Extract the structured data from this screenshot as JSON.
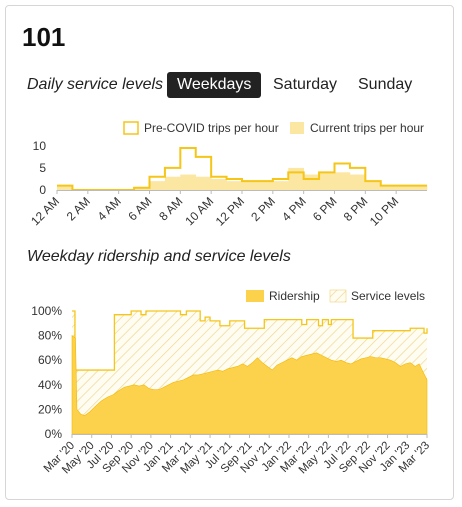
{
  "route": {
    "title": "101"
  },
  "service": {
    "label": "Daily service levels",
    "tabs": [
      {
        "label": "Weekdays",
        "active": true
      },
      {
        "label": "Saturday",
        "active": false
      },
      {
        "label": "Sunday",
        "active": false
      }
    ]
  },
  "ridership_section": {
    "label": "Weekday ridership and service levels"
  },
  "colors": {
    "accent": "#f5c518",
    "fill_light": "#fbe6a2",
    "fill_ridership": "#fcd24c",
    "dark_tab": "#222222"
  },
  "chart_data": [
    {
      "type": "step-area",
      "legend": [
        "Pre-COVID trips per hour",
        "Current trips per hour"
      ],
      "legend_position": "top-right",
      "x_tick_labels": [
        "12 AM",
        "2 AM",
        "4 AM",
        "6 AM",
        "8 AM",
        "10 AM",
        "12 PM",
        "2 PM",
        "4 PM",
        "6 PM",
        "8 PM",
        "10 PM"
      ],
      "x_tick_hours": [
        0,
        2,
        4,
        6,
        8,
        10,
        12,
        14,
        16,
        18,
        20,
        22
      ],
      "y_ticks": [
        0,
        5,
        10
      ],
      "ylim": [
        0,
        12
      ],
      "xlim": [
        0,
        24
      ],
      "hours": [
        0,
        1,
        2,
        3,
        4,
        5,
        6,
        7,
        8,
        9,
        10,
        11,
        12,
        13,
        14,
        15,
        16,
        17,
        18,
        19,
        20,
        21,
        22,
        23
      ],
      "series": [
        {
          "name": "Pre-COVID trips per hour",
          "values": [
            1,
            0,
            0,
            0,
            0,
            0.5,
            3,
            5,
            9.5,
            7.5,
            3,
            2.5,
            2,
            2,
            2.5,
            4,
            2.5,
            4,
            6,
            5,
            2,
            1,
            1,
            1
          ]
        },
        {
          "name": "Current trips per hour",
          "values": [
            1,
            0,
            0,
            0,
            0,
            0.5,
            2,
            3,
            3.5,
            3,
            2.5,
            2,
            2,
            2,
            2,
            5,
            3.5,
            4,
            4,
            3.5,
            2,
            1,
            1,
            1
          ]
        }
      ]
    },
    {
      "type": "area",
      "legend": [
        "Ridership",
        "Service levels"
      ],
      "legend_position": "top-right",
      "x_tick_labels": [
        "Mar '20",
        "May '20",
        "Jul '20",
        "Sep '20",
        "Nov '20",
        "Jan '21",
        "Mar '21",
        "May '21",
        "Jul '21",
        "Sep '21",
        "Nov '21",
        "Jan '22",
        "Mar '22",
        "May '22",
        "Jul '22",
        "Sep '22",
        "Nov '22",
        "Jan '23",
        "Mar '23"
      ],
      "y_tick_labels": [
        "0%",
        "20%",
        "40%",
        "60%",
        "80%",
        "100%"
      ],
      "y_ticks": [
        0,
        20,
        40,
        60,
        80,
        100
      ],
      "ylim": [
        0,
        100
      ],
      "xlim_months": [
        0,
        36
      ],
      "series": [
        {
          "name": "Service levels",
          "points": [
            [
              0,
              100
            ],
            [
              0.3,
              100
            ],
            [
              0.3,
              52
            ],
            [
              4.3,
              52
            ],
            [
              4.3,
              97
            ],
            [
              6,
              97
            ],
            [
              6,
              100
            ],
            [
              7,
              100
            ],
            [
              7,
              97
            ],
            [
              7.5,
              97
            ],
            [
              7.5,
              100
            ],
            [
              11,
              100
            ],
            [
              11,
              97
            ],
            [
              11.6,
              97
            ],
            [
              11.6,
              100
            ],
            [
              13,
              100
            ],
            [
              13,
              92
            ],
            [
              13.5,
              92
            ],
            [
              13.5,
              95
            ],
            [
              14,
              95
            ],
            [
              14,
              92
            ],
            [
              15,
              92
            ],
            [
              15,
              88
            ],
            [
              16,
              88
            ],
            [
              16,
              92
            ],
            [
              17.5,
              92
            ],
            [
              17.5,
              86
            ],
            [
              19.5,
              86
            ],
            [
              19.5,
              93
            ],
            [
              23.3,
              93
            ],
            [
              23.3,
              89
            ],
            [
              23.8,
              89
            ],
            [
              23.8,
              93
            ],
            [
              25,
              93
            ],
            [
              25,
              88
            ],
            [
              25.4,
              88
            ],
            [
              25.4,
              93
            ],
            [
              26,
              93
            ],
            [
              26,
              89
            ],
            [
              26.3,
              89
            ],
            [
              26.3,
              93
            ],
            [
              28.5,
              93
            ],
            [
              28.5,
              78
            ],
            [
              30.5,
              78
            ],
            [
              30.5,
              84
            ],
            [
              34.3,
              84
            ],
            [
              34.3,
              86
            ],
            [
              35.7,
              86
            ],
            [
              35.7,
              82
            ],
            [
              36,
              82
            ],
            [
              36,
              86
            ]
          ]
        },
        {
          "name": "Ridership",
          "points": [
            [
              0,
              80
            ],
            [
              0.35,
              78
            ],
            [
              0.5,
              20
            ],
            [
              0.9,
              16
            ],
            [
              1.3,
              15
            ],
            [
              1.8,
              18
            ],
            [
              2.3,
              22
            ],
            [
              3,
              27
            ],
            [
              3.6,
              30
            ],
            [
              4.2,
              32
            ],
            [
              4.7,
              35
            ],
            [
              5.3,
              38
            ],
            [
              5.8,
              39
            ],
            [
              6.3,
              40
            ],
            [
              6.8,
              39
            ],
            [
              7.3,
              40
            ],
            [
              7.8,
              37
            ],
            [
              8.3,
              36
            ],
            [
              8.8,
              36
            ],
            [
              9.3,
              38
            ],
            [
              9.8,
              40
            ],
            [
              10.3,
              42
            ],
            [
              10.8,
              43
            ],
            [
              11.3,
              44
            ],
            [
              11.8,
              46
            ],
            [
              12.3,
              48
            ],
            [
              12.8,
              48
            ],
            [
              13.3,
              49
            ],
            [
              13.8,
              50
            ],
            [
              14.3,
              51
            ],
            [
              14.8,
              52
            ],
            [
              15.3,
              51
            ],
            [
              15.8,
              53
            ],
            [
              16.3,
              54
            ],
            [
              16.8,
              55
            ],
            [
              17.3,
              57
            ],
            [
              17.8,
              55
            ],
            [
              18.3,
              58
            ],
            [
              18.8,
              62
            ],
            [
              19.3,
              58
            ],
            [
              19.8,
              55
            ],
            [
              20.3,
              52
            ],
            [
              20.8,
              56
            ],
            [
              21.3,
              58
            ],
            [
              21.8,
              60
            ],
            [
              22.3,
              62
            ],
            [
              22.8,
              60
            ],
            [
              23.3,
              63
            ],
            [
              23.8,
              64
            ],
            [
              24.3,
              65
            ],
            [
              24.8,
              66
            ],
            [
              25.3,
              64
            ],
            [
              25.8,
              62
            ],
            [
              26.3,
              60
            ],
            [
              26.8,
              59
            ],
            [
              27.3,
              60
            ],
            [
              27.8,
              58
            ],
            [
              28.3,
              57
            ],
            [
              28.8,
              59
            ],
            [
              29.3,
              61
            ],
            [
              29.8,
              62
            ],
            [
              30.3,
              63
            ],
            [
              30.8,
              62
            ],
            [
              31.3,
              62
            ],
            [
              31.8,
              61
            ],
            [
              32.3,
              60
            ],
            [
              32.8,
              58
            ],
            [
              33.3,
              55
            ],
            [
              33.8,
              57
            ],
            [
              34.3,
              58
            ],
            [
              34.8,
              55
            ],
            [
              35.2,
              57
            ],
            [
              35.5,
              52
            ],
            [
              36,
              44
            ]
          ]
        }
      ]
    }
  ]
}
